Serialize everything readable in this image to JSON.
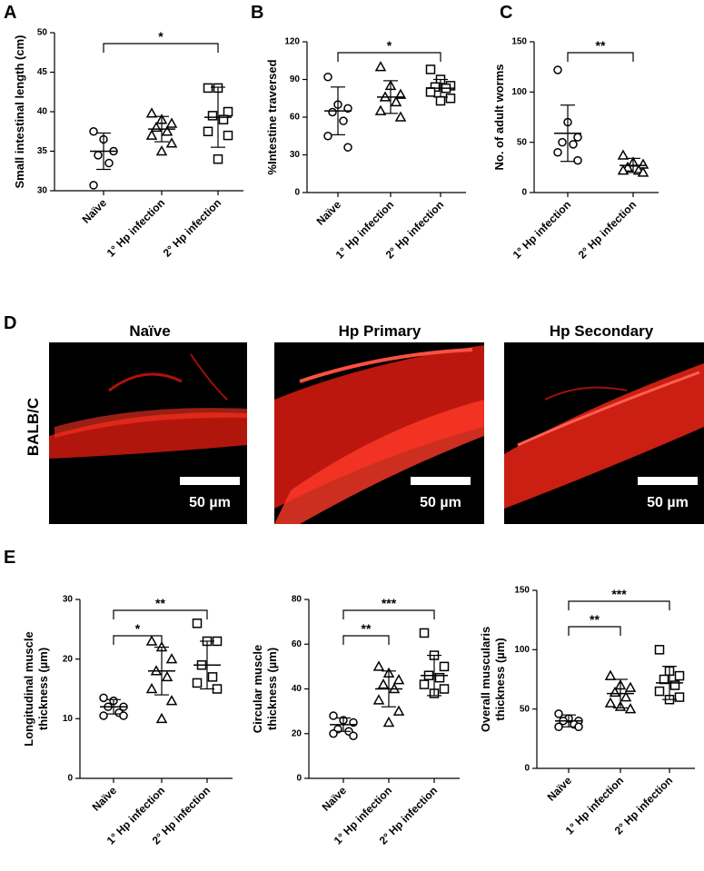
{
  "panel_letters": [
    "A",
    "B",
    "C",
    "D",
    "E"
  ],
  "image_panels": [
    {
      "title": "Naïve",
      "scale_label": "50 µm"
    },
    {
      "title": "Hp Primary",
      "scale_label": "50 µm"
    },
    {
      "title": "Hp Secondary",
      "scale_label": "50 µm"
    }
  ],
  "row_label": "BALB/C",
  "chart_data": [
    {
      "type": "dotplot",
      "ylabel": "Small intestinal length (cm)",
      "categories": [
        "Naïve",
        "1° Hp infection",
        "2° Hp infection"
      ],
      "markers": [
        "circle",
        "triangle",
        "square"
      ],
      "points": [
        [
          37.5,
          36.5,
          35,
          34.5,
          33.5,
          30.7
        ],
        [
          39.8,
          39,
          38.5,
          38,
          37.5,
          37,
          36,
          35
        ],
        [
          43,
          43,
          40,
          39.5,
          39,
          37.5,
          37,
          34
        ]
      ],
      "means": [
        35,
        37.8,
        39.3
      ],
      "sds": [
        2.3,
        1.6,
        3.8
      ],
      "significance": [
        {
          "from": 0,
          "to": 2,
          "label": "*"
        }
      ],
      "ylim": [
        30,
        50
      ],
      "yticks": [
        30,
        35,
        40,
        45,
        50
      ]
    },
    {
      "type": "dotplot",
      "ylabel": "%Intestine traversed",
      "categories": [
        "Naïve",
        "1° Hp infection",
        "2° Hp infection"
      ],
      "markers": [
        "circle",
        "triangle",
        "square"
      ],
      "points": [
        [
          92,
          70,
          67,
          64,
          57,
          45,
          36
        ],
        [
          100,
          85,
          78,
          76,
          72,
          65,
          60
        ],
        [
          98,
          90,
          85,
          84,
          83,
          80,
          75,
          73
        ]
      ],
      "means": [
        65,
        76,
        83
      ],
      "sds": [
        19,
        13,
        7
      ],
      "significance": [
        {
          "from": 0,
          "to": 2,
          "label": "*"
        }
      ],
      "ylim": [
        0,
        120
      ],
      "yticks": [
        0,
        30,
        60,
        90,
        120
      ]
    },
    {
      "type": "dotplot",
      "ylabel": "No. of adult worms",
      "categories": [
        "1° Hp infection",
        "2° Hp infection"
      ],
      "markers": [
        "circle",
        "triangle"
      ],
      "points": [
        [
          122,
          70,
          55,
          50,
          48,
          40,
          32
        ],
        [
          37,
          30,
          28,
          25,
          22,
          22,
          20
        ]
      ],
      "means": [
        59,
        27
      ],
      "sds": [
        28,
        7
      ],
      "significance": [
        {
          "from": 0,
          "to": 1,
          "label": "**"
        }
      ],
      "ylim": [
        0,
        150
      ],
      "yticks": [
        0,
        50,
        100,
        150
      ]
    },
    {
      "type": "dotplot",
      "ylabel": [
        "Longitudinal muscle",
        "thickness (µm)"
      ],
      "categories": [
        "Naïve",
        "1° Hp infection",
        "2° Hp infection"
      ],
      "markers": [
        "circle",
        "triangle",
        "square"
      ],
      "points": [
        [
          13.5,
          13,
          12,
          12,
          11,
          10.5,
          10.5
        ],
        [
          23,
          22,
          20,
          18,
          17,
          15,
          13,
          10
        ],
        [
          26,
          23,
          23,
          19,
          17,
          16,
          15
        ]
      ],
      "means": [
        12,
        18,
        19
      ],
      "sds": [
        1.2,
        4,
        4
      ],
      "significance": [
        {
          "from": 0,
          "to": 1,
          "label": "*"
        },
        {
          "from": 0,
          "to": 2,
          "label": "**"
        }
      ],
      "ylim": [
        0,
        30
      ],
      "yticks": [
        0,
        10,
        20,
        30
      ]
    },
    {
      "type": "dotplot",
      "ylabel": [
        "Circular muscle",
        "thickness (µm)"
      ],
      "categories": [
        "Naïve",
        "1° Hp infection",
        "2° Hp infection"
      ],
      "markers": [
        "circle",
        "triangle",
        "square"
      ],
      "points": [
        [
          28,
          26,
          25,
          22,
          21,
          20,
          19
        ],
        [
          50,
          47,
          44,
          42,
          40,
          35,
          30,
          25
        ],
        [
          65,
          55,
          50,
          46,
          45,
          42,
          40,
          38
        ]
      ],
      "means": [
        24,
        40,
        46
      ],
      "sds": [
        3,
        8,
        9
      ],
      "significance": [
        {
          "from": 0,
          "to": 1,
          "label": "**"
        },
        {
          "from": 0,
          "to": 2,
          "label": "***"
        }
      ],
      "ylim": [
        0,
        80
      ],
      "yticks": [
        0,
        20,
        40,
        60,
        80
      ]
    },
    {
      "type": "dotplot",
      "ylabel": [
        "Overall muscularis",
        "thickness (µm)"
      ],
      "categories": [
        "Naïve",
        "1° Hp infection",
        "2° Hp infection"
      ],
      "markers": [
        "circle",
        "triangle",
        "square"
      ],
      "points": [
        [
          46,
          42,
          40,
          40,
          37,
          35,
          35
        ],
        [
          78,
          70,
          68,
          64,
          60,
          55,
          50,
          52
        ],
        [
          100,
          82,
          78,
          75,
          70,
          65,
          60,
          58
        ]
      ],
      "means": [
        40,
        63,
        72
      ],
      "sds": [
        5,
        12,
        14
      ],
      "significance": [
        {
          "from": 0,
          "to": 1,
          "label": "**"
        },
        {
          "from": 0,
          "to": 2,
          "label": "***"
        }
      ],
      "ylim": [
        0,
        150
      ],
      "yticks": [
        0,
        50,
        100,
        150
      ]
    }
  ]
}
